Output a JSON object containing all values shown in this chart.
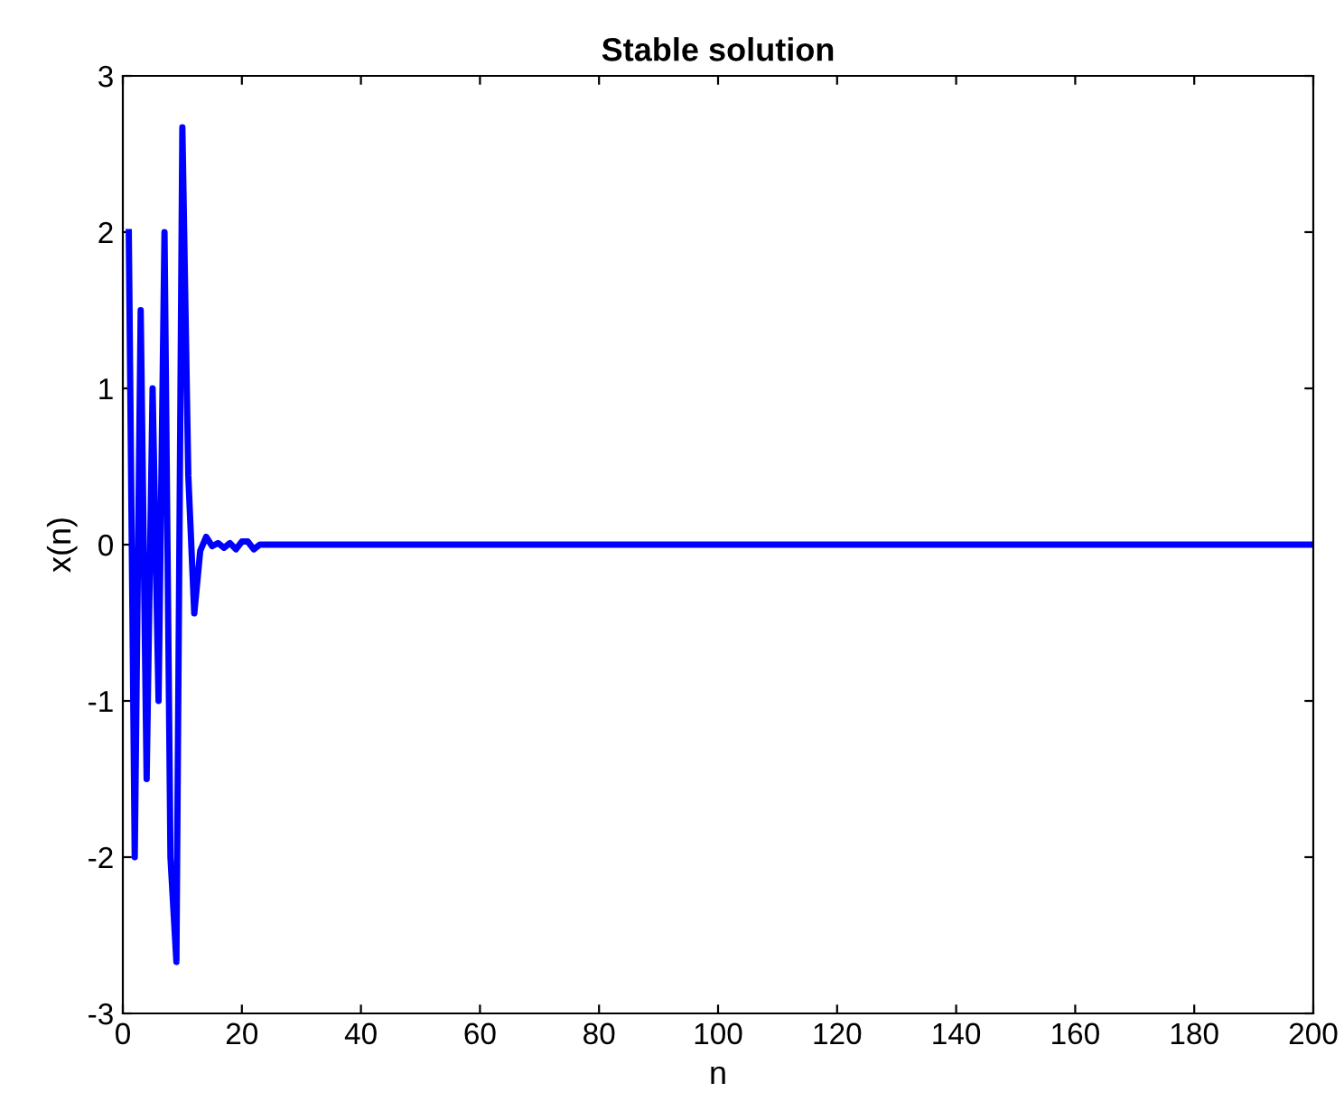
{
  "chart_data": {
    "type": "line",
    "title": "Stable solution",
    "xlabel": "n",
    "ylabel": "x(n)",
    "x": [
      1,
      2,
      3,
      4,
      5,
      6,
      7,
      8,
      9,
      10,
      11,
      12,
      13,
      14,
      15,
      16,
      17,
      18,
      19,
      20,
      21,
      22,
      23,
      24,
      25,
      200
    ],
    "series": [
      {
        "color": "#0000ff",
        "values": [
          2,
          -2,
          1.5,
          -1.5,
          1,
          -1,
          2,
          -2,
          -2.67,
          2.67,
          0.44,
          -0.44,
          -0.04,
          0.05,
          -0.01,
          0.01,
          -0.02,
          0.01,
          -0.03,
          0.02,
          0.02,
          -0.03,
          0,
          0,
          0,
          0
        ]
      }
    ],
    "xlim": [
      0,
      200
    ],
    "ylim": [
      -3,
      3
    ],
    "xticks": [
      0,
      20,
      40,
      60,
      80,
      100,
      120,
      140,
      160,
      180,
      200
    ],
    "yticks": [
      -3,
      -2,
      -1,
      0,
      1,
      2,
      3
    ],
    "grid": false,
    "legend": false,
    "marker": "none",
    "line_style": "solid"
  }
}
